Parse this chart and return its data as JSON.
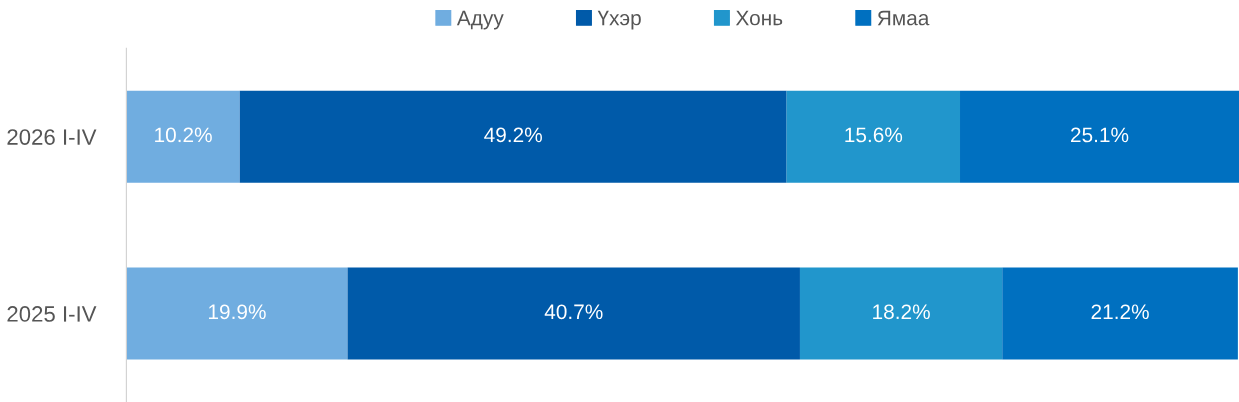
{
  "chart_data": {
    "type": "bar",
    "orientation": "horizontal",
    "stacked": true,
    "categories": [
      "2026 I-IV",
      "2025 I-IV"
    ],
    "series": [
      {
        "name": "Адуу",
        "color": "#70ade0",
        "values": [
          10.2,
          19.9
        ],
        "value_labels": [
          "10.2%",
          "19.9%"
        ]
      },
      {
        "name": "Үхэр",
        "color": "#005aa9",
        "values": [
          49.2,
          40.7
        ],
        "value_labels": [
          "49.2%",
          "40.7%"
        ]
      },
      {
        "name": "Хонь",
        "color": "#2196cc",
        "values": [
          15.6,
          18.2
        ],
        "value_labels": [
          "15.6%",
          "18.2%"
        ]
      },
      {
        "name": "Ямаа",
        "color": "#0070c0",
        "values": [
          25.1,
          21.2
        ],
        "value_labels": [
          "25.1%",
          "21.2%"
        ]
      }
    ],
    "xlim": [
      0,
      100.1
    ],
    "legend": "top",
    "tick_labels": "y",
    "grid": false
  }
}
